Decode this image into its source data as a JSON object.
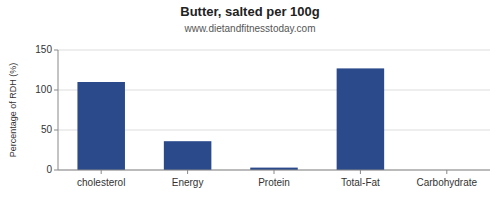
{
  "chart_data": {
    "type": "bar",
    "title": "Butter, salted per 100g",
    "subtitle": "www.dietandfitnesstoday.com",
    "categories": [
      "cholesterol",
      "Energy",
      "Protein",
      "Total-Fat",
      "Carbohydrate"
    ],
    "values": [
      110,
      36,
      3,
      127,
      0
    ],
    "color": "#2b4a8c",
    "ylabel": "Percentage of RDH (%)",
    "ylim": [
      0,
      150
    ],
    "yticks": [
      0,
      50,
      100,
      150
    ],
    "grid": true
  }
}
